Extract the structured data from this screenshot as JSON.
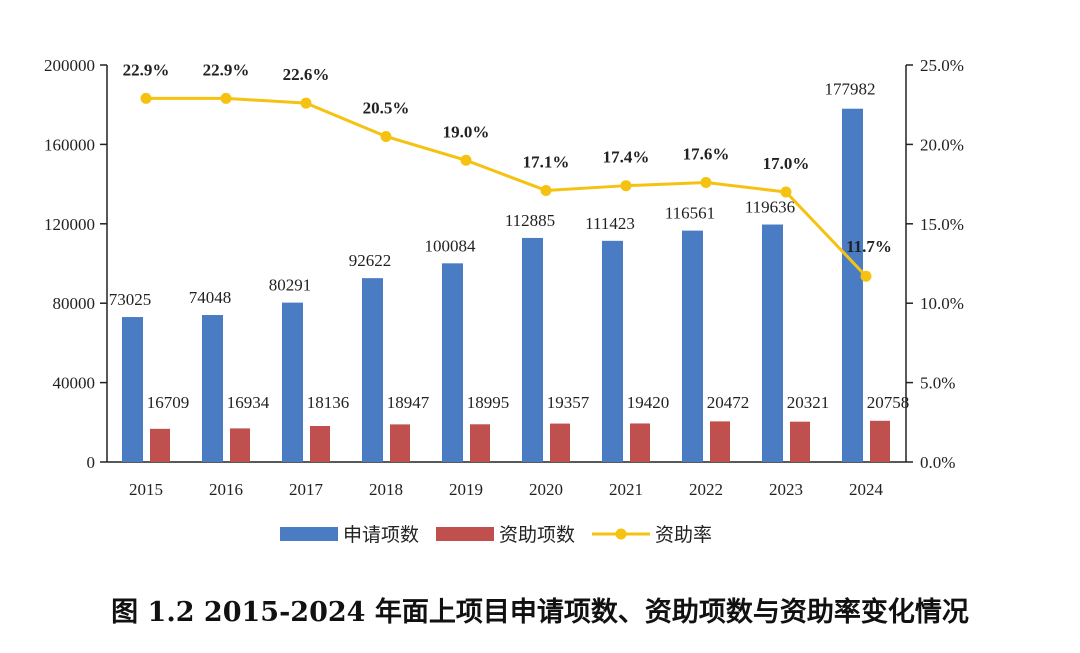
{
  "caption": "图 1.2 2015-2024 年面上项目申请项数、资助项数与资助率变化情况",
  "chart_data": {
    "type": "bar+line",
    "categories": [
      "2015",
      "2016",
      "2017",
      "2018",
      "2019",
      "2020",
      "2021",
      "2022",
      "2023",
      "2024"
    ],
    "series": [
      {
        "name": "申请项数",
        "type": "bar",
        "axis": "left",
        "color": "#4a7cc4",
        "values": [
          73025,
          74048,
          80291,
          92622,
          100084,
          112885,
          111423,
          116561,
          119636,
          177982
        ]
      },
      {
        "name": "资助项数",
        "type": "bar",
        "axis": "left",
        "color": "#c0504d",
        "values": [
          16709,
          16934,
          18136,
          18947,
          18995,
          19357,
          19420,
          20472,
          20321,
          20758
        ]
      },
      {
        "name": "资助率",
        "type": "line",
        "axis": "right",
        "color": "#f5c211",
        "values": [
          22.9,
          22.9,
          22.6,
          20.5,
          19.0,
          17.1,
          17.4,
          17.6,
          17.0,
          11.7
        ],
        "labels": [
          "22.9%",
          "22.9%",
          "22.6%",
          "20.5%",
          "19.0%",
          "17.1%",
          "17.4%",
          "17.6%",
          "17.0%",
          "11.7%"
        ]
      }
    ],
    "left_axis": {
      "ylim": [
        0,
        200000
      ],
      "ticks": [
        "0",
        "40000",
        "80000",
        "120000",
        "160000",
        "200000"
      ]
    },
    "right_axis": {
      "ylim": [
        0,
        25
      ],
      "ticks": [
        "0.0%",
        "5.0%",
        "10.0%",
        "15.0%",
        "20.0%",
        "25.0%"
      ]
    },
    "grid": false,
    "legend": "bottom"
  }
}
